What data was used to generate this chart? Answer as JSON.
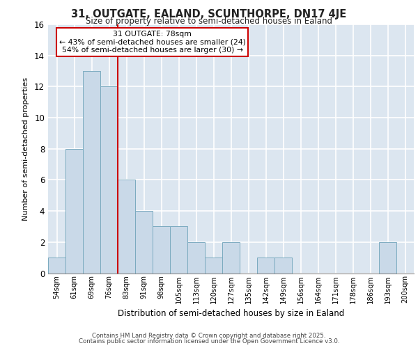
{
  "title1": "31, OUTGATE, EALAND, SCUNTHORPE, DN17 4JE",
  "title2": "Size of property relative to semi-detached houses in Ealand",
  "xlabel": "Distribution of semi-detached houses by size in Ealand",
  "ylabel": "Number of semi-detached properties",
  "categories": [
    "54sqm",
    "61sqm",
    "69sqm",
    "76sqm",
    "83sqm",
    "91sqm",
    "98sqm",
    "105sqm",
    "113sqm",
    "120sqm",
    "127sqm",
    "135sqm",
    "142sqm",
    "149sqm",
    "156sqm",
    "164sqm",
    "171sqm",
    "178sqm",
    "186sqm",
    "193sqm",
    "200sqm"
  ],
  "values": [
    1,
    8,
    13,
    12,
    6,
    4,
    3,
    3,
    2,
    1,
    2,
    0,
    1,
    1,
    0,
    0,
    0,
    0,
    0,
    2,
    0
  ],
  "bar_color": "#c9d9e8",
  "bar_edge_color": "#7aaabf",
  "annotation_title": "31 OUTGATE: 78sqm",
  "annotation_line1": "← 43% of semi-detached houses are smaller (24)",
  "annotation_line2": "54% of semi-detached houses are larger (30) →",
  "annotation_box_color": "#cc0000",
  "background_color": "#dce6f0",
  "grid_color": "#ffffff",
  "ylim": [
    0,
    16
  ],
  "yticks": [
    0,
    2,
    4,
    6,
    8,
    10,
    12,
    14,
    16
  ],
  "red_line_x": 3.5,
  "footer1": "Contains HM Land Registry data © Crown copyright and database right 2025.",
  "footer2": "Contains public sector information licensed under the Open Government Licence v3.0."
}
